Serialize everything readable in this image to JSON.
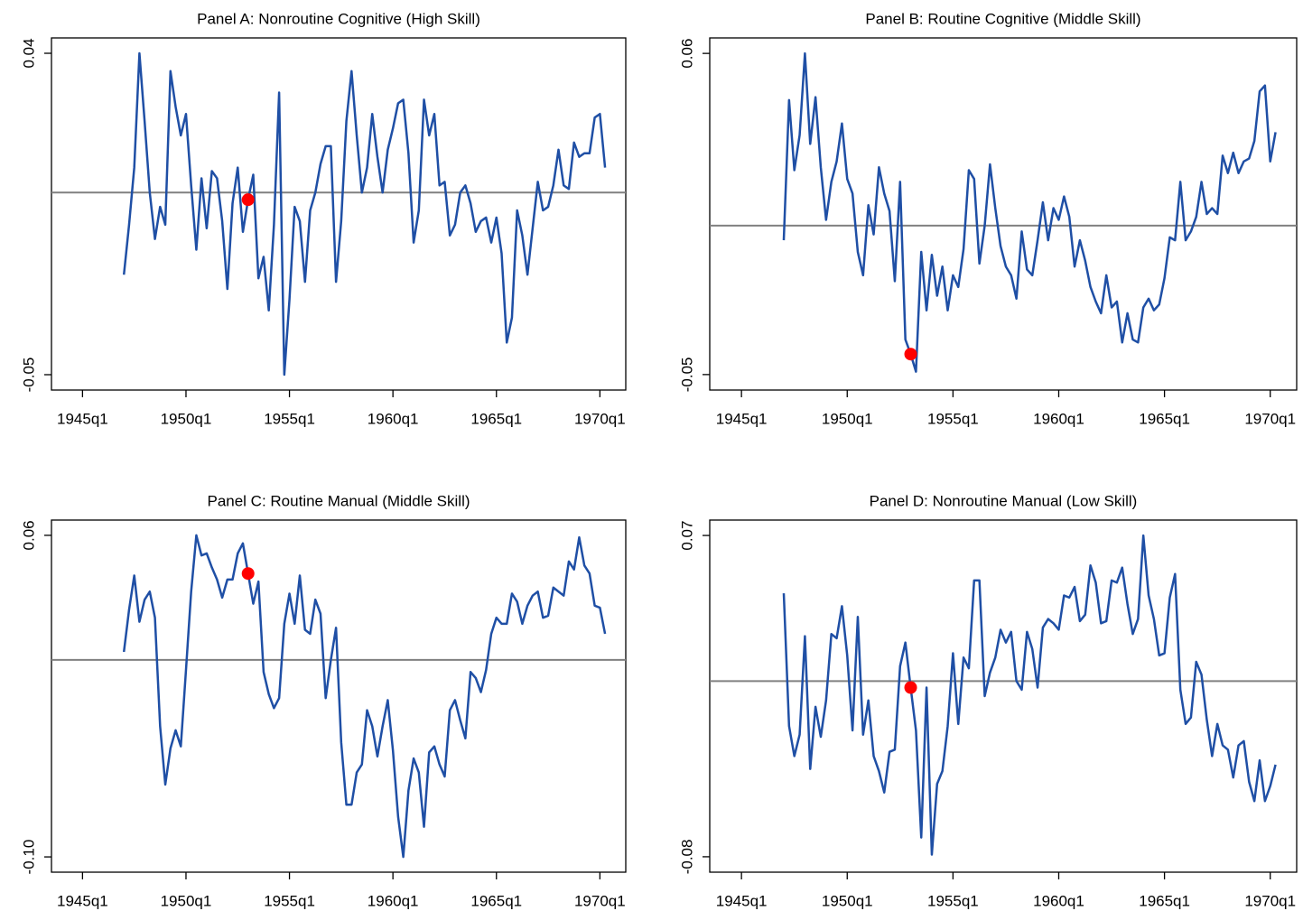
{
  "chart_data": [
    {
      "type": "line",
      "title": "Panel A: Nonroutine Cognitive (High Skill)",
      "x": [
        "1947q1",
        "1947q2",
        "1947q3",
        "1947q4",
        "1948q1",
        "1948q2",
        "1948q3",
        "1948q4",
        "1949q1",
        "1949q2",
        "1949q3",
        "1949q4",
        "1950q1",
        "1950q2",
        "1950q3",
        "1950q4",
        "1951q1",
        "1951q2",
        "1951q3",
        "1951q4",
        "1952q1",
        "1952q2",
        "1952q3",
        "1952q4",
        "1953q1",
        "1953q2",
        "1953q3",
        "1953q4",
        "1954q1",
        "1954q2",
        "1954q3",
        "1954q4",
        "1955q1",
        "1955q2",
        "1955q3",
        "1955q4",
        "1956q1",
        "1956q2",
        "1956q3",
        "1956q4",
        "1957q1",
        "1957q2",
        "1957q3",
        "1957q4",
        "1958q1",
        "1958q2",
        "1958q3",
        "1958q4",
        "1959q1",
        "1959q2",
        "1959q3",
        "1959q4",
        "1960q1",
        "1960q2",
        "1960q3",
        "1960q4",
        "1961q1",
        "1961q2",
        "1961q3",
        "1961q4",
        "1962q1",
        "1962q2",
        "1962q3",
        "1962q4",
        "1963q1",
        "1963q2",
        "1963q3",
        "1963q4",
        "1964q1",
        "1964q2",
        "1964q3",
        "1964q4",
        "1965q1",
        "1965q2",
        "1965q3",
        "1965q4",
        "1966q1",
        "1966q2",
        "1966q3",
        "1966q4",
        "1967q1",
        "1967q2",
        "1967q3",
        "1967q4",
        "1968q1",
        "1968q2",
        "1968q3",
        "1968q4",
        "1969q1",
        "1969q2",
        "1969q3",
        "1969q4",
        "1970q1",
        "1970q2"
      ],
      "series": [
        {
          "color": "#1f4fa5",
          "values": [
            -0.022,
            -0.008,
            0.008,
            0.04,
            0.021,
            0.001,
            -0.012,
            -0.003,
            -0.008,
            0.035,
            0.025,
            0.017,
            0.023,
            0.003,
            -0.015,
            0.005,
            -0.009,
            0.007,
            0.005,
            -0.007,
            -0.026,
            -0.002,
            0.008,
            -0.01,
            -0.001,
            0.006,
            -0.023,
            -0.017,
            -0.032,
            -0.008,
            0.029,
            -0.05,
            -0.029,
            -0.003,
            -0.007,
            -0.024,
            -0.004,
            0.001,
            0.009,
            0.014,
            0.014,
            -0.024,
            -0.007,
            0.021,
            0.035,
            0.017,
            0.001,
            0.008,
            0.023,
            0.011,
            0.001,
            0.013,
            0.019,
            0.026,
            0.027,
            0.012,
            -0.013,
            -0.004,
            0.027,
            0.017,
            0.023,
            0.003,
            0.004,
            -0.011,
            -0.008,
            0.001,
            0.003,
            -0.002,
            -0.01,
            -0.007,
            -0.006,
            -0.013,
            -0.006,
            -0.016,
            -0.041,
            -0.034,
            -0.004,
            -0.011,
            -0.022,
            -0.009,
            0.004,
            -0.004,
            -0.003,
            0.003,
            0.013,
            0.003,
            0.002,
            0.015,
            0.011,
            0.012,
            0.012,
            0.022,
            0.023,
            0.008
          ]
        }
      ],
      "highlight": {
        "x": "1953q1",
        "y": -0.001,
        "color": "#ff0000"
      },
      "hline": {
        "value": 0.001,
        "color": "#808080"
      },
      "xlim": [
        "1943q3",
        "1971q2"
      ],
      "xticks": [
        "1945q1",
        "1950q1",
        "1955q1",
        "1960q1",
        "1965q1",
        "1970q1"
      ],
      "ylim": [
        -0.0543,
        0.0443
      ],
      "yticks": [
        -0.05,
        0.04
      ]
    },
    {
      "type": "line",
      "title": "Panel B: Routine Cognitive (Middle Skill)",
      "x": [
        "1947q1",
        "1947q2",
        "1947q3",
        "1947q4",
        "1948q1",
        "1948q2",
        "1948q3",
        "1948q4",
        "1949q1",
        "1949q2",
        "1949q3",
        "1949q4",
        "1950q1",
        "1950q2",
        "1950q3",
        "1950q4",
        "1951q1",
        "1951q2",
        "1951q3",
        "1951q4",
        "1952q1",
        "1952q2",
        "1952q3",
        "1952q4",
        "1953q1",
        "1953q2",
        "1953q3",
        "1953q4",
        "1954q1",
        "1954q2",
        "1954q3",
        "1954q4",
        "1955q1",
        "1955q2",
        "1955q3",
        "1955q4",
        "1956q1",
        "1956q2",
        "1956q3",
        "1956q4",
        "1957q1",
        "1957q2",
        "1957q3",
        "1957q4",
        "1958q1",
        "1958q2",
        "1958q3",
        "1958q4",
        "1959q1",
        "1959q2",
        "1959q3",
        "1959q4",
        "1960q1",
        "1960q2",
        "1960q3",
        "1960q4",
        "1961q1",
        "1961q2",
        "1961q3",
        "1961q4",
        "1962q1",
        "1962q2",
        "1962q3",
        "1962q4",
        "1963q1",
        "1963q2",
        "1963q3",
        "1963q4",
        "1964q1",
        "1964q2",
        "1964q3",
        "1964q4",
        "1965q1",
        "1965q2",
        "1965q3",
        "1965q4",
        "1966q1",
        "1966q2",
        "1966q3",
        "1966q4",
        "1967q1",
        "1967q2",
        "1967q3",
        "1967q4",
        "1968q1",
        "1968q2",
        "1968q3",
        "1968q4",
        "1969q1",
        "1969q2",
        "1969q3",
        "1969q4",
        "1970q1",
        "1970q2"
      ],
      "series": [
        {
          "color": "#1f4fa5",
          "values": [
            -0.004,
            0.044,
            0.02,
            0.032,
            0.06,
            0.029,
            0.045,
            0.021,
            0.003,
            0.016,
            0.023,
            0.036,
            0.017,
            0.012,
            -0.008,
            -0.016,
            0.008,
            -0.002,
            0.021,
            0.012,
            0.006,
            -0.018,
            0.016,
            -0.038,
            -0.043,
            -0.049,
            -0.008,
            -0.028,
            -0.009,
            -0.023,
            -0.013,
            -0.028,
            -0.016,
            -0.02,
            -0.007,
            0.02,
            0.017,
            -0.012,
            0.001,
            0.022,
            0.007,
            -0.006,
            -0.013,
            -0.016,
            -0.024,
            -0.001,
            -0.014,
            -0.016,
            -0.004,
            0.009,
            -0.004,
            0.007,
            0.003,
            0.011,
            0.004,
            -0.013,
            -0.004,
            -0.011,
            -0.02,
            -0.025,
            -0.029,
            -0.016,
            -0.027,
            -0.025,
            -0.039,
            -0.029,
            -0.038,
            -0.039,
            -0.027,
            -0.024,
            -0.028,
            -0.026,
            -0.017,
            -0.003,
            -0.004,
            0.016,
            -0.004,
            -0.001,
            0.004,
            0.016,
            0.005,
            0.007,
            0.005,
            0.025,
            0.019,
            0.026,
            0.019,
            0.023,
            0.024,
            0.03,
            0.047,
            0.049,
            0.023,
            0.033
          ]
        }
      ],
      "highlight": {
        "x": "1953q1",
        "y": -0.043,
        "color": "#ff0000"
      },
      "hline": {
        "value": 0.001,
        "color": "#808080"
      },
      "xlim": [
        "1943q3",
        "1971q2"
      ],
      "xticks": [
        "1945q1",
        "1950q1",
        "1955q1",
        "1960q1",
        "1965q1",
        "1970q1"
      ],
      "ylim": [
        -0.0553,
        0.0653
      ],
      "yticks": [
        -0.05,
        0.06
      ]
    },
    {
      "type": "line",
      "title": "Panel C: Routine Manual (Middle Skill)",
      "x": [
        "1947q1",
        "1947q2",
        "1947q3",
        "1947q4",
        "1948q1",
        "1948q2",
        "1948q3",
        "1948q4",
        "1949q1",
        "1949q2",
        "1949q3",
        "1949q4",
        "1950q1",
        "1950q2",
        "1950q3",
        "1950q4",
        "1951q1",
        "1951q2",
        "1951q3",
        "1951q4",
        "1952q1",
        "1952q2",
        "1952q3",
        "1952q4",
        "1953q1",
        "1953q2",
        "1953q3",
        "1953q4",
        "1954q1",
        "1954q2",
        "1954q3",
        "1954q4",
        "1955q1",
        "1955q2",
        "1955q3",
        "1955q4",
        "1956q1",
        "1956q2",
        "1956q3",
        "1956q4",
        "1957q1",
        "1957q2",
        "1957q3",
        "1957q4",
        "1958q1",
        "1958q2",
        "1958q3",
        "1958q4",
        "1959q1",
        "1959q2",
        "1959q3",
        "1959q4",
        "1960q1",
        "1960q2",
        "1960q3",
        "1960q4",
        "1961q1",
        "1961q2",
        "1961q3",
        "1961q4",
        "1962q1",
        "1962q2",
        "1962q3",
        "1962q4",
        "1963q1",
        "1963q2",
        "1963q3",
        "1963q4",
        "1964q1",
        "1964q2",
        "1964q3",
        "1964q4",
        "1965q1",
        "1965q2",
        "1965q3",
        "1965q4",
        "1966q1",
        "1966q2",
        "1966q3",
        "1966q4",
        "1967q1",
        "1967q2",
        "1967q3",
        "1967q4",
        "1968q1",
        "1968q2",
        "1968q3",
        "1968q4",
        "1969q1",
        "1969q2",
        "1969q3",
        "1969q4",
        "1970q1",
        "1970q2"
      ],
      "series": [
        {
          "color": "#1f4fa5",
          "values": [
            0.002,
            0.023,
            0.04,
            0.017,
            0.028,
            0.032,
            0.019,
            -0.035,
            -0.064,
            -0.046,
            -0.037,
            -0.045,
            -0.007,
            0.032,
            0.06,
            0.05,
            0.051,
            0.044,
            0.038,
            0.029,
            0.038,
            0.038,
            0.051,
            0.056,
            0.041,
            0.026,
            0.037,
            -0.008,
            -0.019,
            -0.026,
            -0.021,
            0.016,
            0.031,
            0.016,
            0.04,
            0.013,
            0.011,
            0.028,
            0.021,
            -0.021,
            -0.002,
            0.014,
            -0.043,
            -0.074,
            -0.074,
            -0.058,
            -0.054,
            -0.027,
            -0.035,
            -0.05,
            -0.035,
            -0.022,
            -0.047,
            -0.08,
            -0.1,
            -0.067,
            -0.051,
            -0.058,
            -0.085,
            -0.048,
            -0.045,
            -0.054,
            -0.06,
            -0.027,
            -0.022,
            -0.032,
            -0.041,
            -0.008,
            -0.011,
            -0.018,
            -0.007,
            0.011,
            0.019,
            0.016,
            0.016,
            0.031,
            0.027,
            0.016,
            0.025,
            0.03,
            0.032,
            0.019,
            0.02,
            0.034,
            0.032,
            0.03,
            0.047,
            0.043,
            0.059,
            0.045,
            0.041,
            0.025,
            0.024,
            0.011
          ]
        }
      ],
      "highlight": {
        "x": "1953q1",
        "y": 0.041,
        "color": "#ff0000"
      },
      "hline": {
        "value": -0.002,
        "color": "#808080"
      },
      "xlim": [
        "1943q3",
        "1971q2"
      ],
      "xticks": [
        "1945q1",
        "1950q1",
        "1955q1",
        "1960q1",
        "1965q1",
        "1970q1"
      ],
      "ylim": [
        -0.1076,
        0.0676
      ],
      "yticks": [
        {
          "value": -0.1,
          "label": "-0.10"
        },
        0.06
      ]
    },
    {
      "type": "line",
      "title": "Panel D: Nonroutine Manual (Low Skill)",
      "x": [
        "1947q1",
        "1947q2",
        "1947q3",
        "1947q4",
        "1948q1",
        "1948q2",
        "1948q3",
        "1948q4",
        "1949q1",
        "1949q2",
        "1949q3",
        "1949q4",
        "1950q1",
        "1950q2",
        "1950q3",
        "1950q4",
        "1951q1",
        "1951q2",
        "1951q3",
        "1951q4",
        "1952q1",
        "1952q2",
        "1952q3",
        "1952q4",
        "1953q1",
        "1953q2",
        "1953q3",
        "1953q4",
        "1954q1",
        "1954q2",
        "1954q3",
        "1954q4",
        "1955q1",
        "1955q2",
        "1955q3",
        "1955q4",
        "1956q1",
        "1956q2",
        "1956q3",
        "1956q4",
        "1957q1",
        "1957q2",
        "1957q3",
        "1957q4",
        "1958q1",
        "1958q2",
        "1958q3",
        "1958q4",
        "1959q1",
        "1959q2",
        "1959q3",
        "1959q4",
        "1960q1",
        "1960q2",
        "1960q3",
        "1960q4",
        "1961q1",
        "1961q2",
        "1961q3",
        "1961q4",
        "1962q1",
        "1962q2",
        "1962q3",
        "1962q4",
        "1963q1",
        "1963q2",
        "1963q3",
        "1963q4",
        "1964q1",
        "1964q2",
        "1964q3",
        "1964q4",
        "1965q1",
        "1965q2",
        "1965q3",
        "1965q4",
        "1966q1",
        "1966q2",
        "1966q3",
        "1966q4",
        "1967q1",
        "1967q2",
        "1967q3",
        "1967q4",
        "1968q1",
        "1968q2",
        "1968q3",
        "1968q4",
        "1969q1",
        "1969q2",
        "1969q3",
        "1969q4",
        "1970q1",
        "1970q2"
      ],
      "series": [
        {
          "color": "#1f4fa5",
          "values": [
            0.043,
            -0.019,
            -0.033,
            -0.023,
            0.023,
            -0.039,
            -0.01,
            -0.024,
            -0.007,
            0.024,
            0.022,
            0.037,
            0.014,
            -0.021,
            0.032,
            -0.023,
            -0.007,
            -0.033,
            -0.04,
            -0.05,
            -0.031,
            -0.03,
            0.009,
            0.02,
            -0.001,
            -0.021,
            -0.071,
            -0.001,
            -0.079,
            -0.046,
            -0.04,
            -0.019,
            0.015,
            -0.018,
            0.013,
            0.008,
            0.049,
            0.049,
            -0.005,
            0.006,
            0.013,
            0.026,
            0.02,
            0.025,
            0.002,
            -0.002,
            0.025,
            0.017,
            -0.001,
            0.027,
            0.031,
            0.029,
            0.026,
            0.042,
            0.041,
            0.046,
            0.03,
            0.033,
            0.056,
            0.048,
            0.029,
            0.03,
            0.049,
            0.048,
            0.055,
            0.038,
            0.024,
            0.031,
            0.07,
            0.042,
            0.031,
            0.014,
            0.015,
            0.041,
            0.052,
            -0.002,
            -0.018,
            -0.015,
            0.011,
            0.005,
            -0.016,
            -0.033,
            -0.018,
            -0.028,
            -0.03,
            -0.043,
            -0.028,
            -0.026,
            -0.045,
            -0.054,
            -0.035,
            -0.054,
            -0.047,
            -0.037
          ]
        }
      ],
      "highlight": {
        "x": "1953q1",
        "y": -0.001,
        "color": "#ff0000"
      },
      "hline": {
        "value": 0.002,
        "color": "#808080"
      },
      "xlim": [
        "1943q3",
        "1971q2"
      ],
      "xticks": [
        "1945q1",
        "1950q1",
        "1955q1",
        "1960q1",
        "1965q1",
        "1970q1"
      ],
      "ylim": [
        -0.0872,
        0.0772
      ],
      "yticks": [
        -0.08,
        0.07
      ]
    }
  ]
}
